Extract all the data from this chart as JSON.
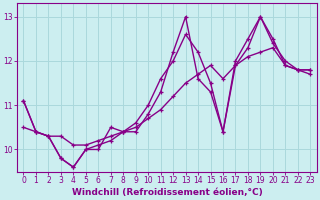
{
  "xlabel": "Windchill (Refroidissement éolien,°C)",
  "bg_color": "#cceef0",
  "grid_color": "#aad8dc",
  "line_color": "#880088",
  "xlim": [
    -0.5,
    23.5
  ],
  "ylim": [
    9.5,
    13.3
  ],
  "yticks": [
    10,
    11,
    12,
    13
  ],
  "xticks": [
    0,
    1,
    2,
    3,
    4,
    5,
    6,
    7,
    8,
    9,
    10,
    11,
    12,
    13,
    14,
    15,
    16,
    17,
    18,
    19,
    20,
    21,
    22,
    23
  ],
  "series": [
    {
      "x": [
        0,
        1,
        2,
        3,
        4,
        5,
        6,
        7,
        8,
        9,
        10,
        11,
        12,
        13,
        14,
        15,
        16,
        17,
        18,
        19,
        20,
        21,
        22,
        23
      ],
      "y": [
        10.5,
        10.4,
        10.3,
        10.3,
        10.1,
        10.1,
        10.2,
        10.3,
        10.4,
        10.5,
        10.7,
        10.9,
        11.2,
        11.5,
        11.7,
        11.9,
        11.6,
        11.9,
        12.1,
        12.2,
        12.3,
        11.9,
        11.8,
        11.8
      ]
    },
    {
      "x": [
        0,
        1,
        2,
        3,
        4,
        5,
        6,
        7,
        8,
        9,
        10,
        11,
        12,
        13,
        14,
        15,
        16,
        17,
        18,
        19,
        20,
        21,
        22,
        23
      ],
      "y": [
        11.1,
        10.4,
        10.3,
        9.8,
        9.6,
        10.0,
        10.0,
        10.5,
        10.4,
        10.4,
        10.8,
        11.3,
        12.2,
        13.0,
        11.6,
        11.3,
        10.4,
        11.9,
        12.3,
        13.0,
        12.5,
        11.9,
        11.8,
        11.8
      ]
    },
    {
      "x": [
        0,
        1,
        2,
        3,
        4,
        5,
        6,
        7,
        8,
        9,
        10,
        11,
        12,
        13,
        14,
        15,
        16,
        17,
        18,
        19,
        20,
        21,
        22,
        23
      ],
      "y": [
        11.1,
        10.4,
        10.3,
        9.8,
        9.6,
        10.0,
        10.1,
        10.2,
        10.4,
        10.6,
        11.0,
        11.6,
        12.0,
        12.6,
        12.2,
        11.5,
        10.4,
        12.0,
        12.5,
        13.0,
        12.4,
        12.0,
        11.8,
        11.7
      ]
    }
  ],
  "marker": "+",
  "markersize": 3.5,
  "linewidth": 1.0,
  "tick_fontsize": 5.5,
  "xlabel_fontsize": 6.5
}
